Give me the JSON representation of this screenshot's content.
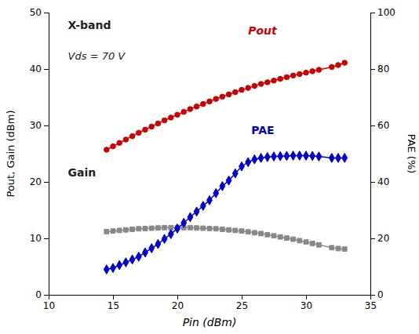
{
  "chart_data": {
    "type": "line",
    "x": [
      14.5,
      15.0,
      15.5,
      16.0,
      16.5,
      17.0,
      17.5,
      18.0,
      18.5,
      19.0,
      19.5,
      20.0,
      20.5,
      21.0,
      21.5,
      22.0,
      22.5,
      23.0,
      23.5,
      24.0,
      24.5,
      25.0,
      25.5,
      26.0,
      26.5,
      27.0,
      27.5,
      28.0,
      28.5,
      29.0,
      29.5,
      30.0,
      30.5,
      31.0,
      32.0,
      32.5,
      33.0
    ],
    "series": [
      {
        "color": "#cc0000",
        "marker": "circle",
        "line_style": "solid",
        "values": [
          25.7,
          26.3,
          26.9,
          27.5,
          28.1,
          28.7,
          29.25,
          29.8,
          30.35,
          30.9,
          31.4,
          31.9,
          32.4,
          32.9,
          33.35,
          33.8,
          34.25,
          34.7,
          35.1,
          35.5,
          35.9,
          36.3,
          36.65,
          37.0,
          37.35,
          37.65,
          37.95,
          38.25,
          38.55,
          38.85,
          39.1,
          39.35,
          39.6,
          39.85,
          40.35,
          40.7,
          41.1
        ]
      },
      {
        "color": "#888888",
        "marker": "square",
        "line_style": "solid",
        "values": [
          11.2,
          11.3,
          11.4,
          11.5,
          11.6,
          11.7,
          11.75,
          11.8,
          11.85,
          11.9,
          11.9,
          11.9,
          11.9,
          11.9,
          11.85,
          11.8,
          11.75,
          11.7,
          11.6,
          11.5,
          11.4,
          11.3,
          11.15,
          11.0,
          10.85,
          10.65,
          10.45,
          10.25,
          10.05,
          9.85,
          9.6,
          9.35,
          9.1,
          8.85,
          8.35,
          8.2,
          8.1
        ]
      },
      {
        "color": "#0000cc",
        "marker": "diamond",
        "line_style": "solid",
        "axis": "y2",
        "values": [
          9.0,
          9.5,
          10.5,
          11.5,
          12.5,
          13.5,
          15.0,
          16.5,
          18.0,
          19.8,
          21.5,
          23.5,
          25.5,
          27.5,
          29.5,
          31.5,
          33.5,
          36.0,
          38.5,
          40.5,
          43.0,
          45.5,
          47.0,
          48.0,
          48.5,
          48.8,
          49.0,
          49.1,
          49.2,
          49.3,
          49.3,
          49.3,
          49.2,
          49.0,
          48.5,
          48.5,
          48.5
        ]
      }
    ],
    "xlim": [
      10,
      35
    ],
    "xticks": [
      10,
      15,
      20,
      25,
      30,
      35
    ],
    "ylim": [
      0,
      50
    ],
    "yticks": [
      0,
      10,
      20,
      30,
      40,
      50
    ],
    "y2lim": [
      0,
      100
    ],
    "y2ticks": [
      0,
      20,
      40,
      60,
      80,
      100
    ],
    "xlabel": "Pin (dBm)",
    "ylabel": "Pout, Gain (dBm)",
    "y2label": "PAE (%)",
    "grid": false,
    "annotations": [
      {
        "text": "X-band"
      },
      {
        "text": "Vds = 70 V"
      },
      {
        "text": "Pout",
        "color": "#cc0000"
      },
      {
        "text": "PAE",
        "color": "#0000cc"
      },
      {
        "text": "Gain"
      }
    ]
  }
}
